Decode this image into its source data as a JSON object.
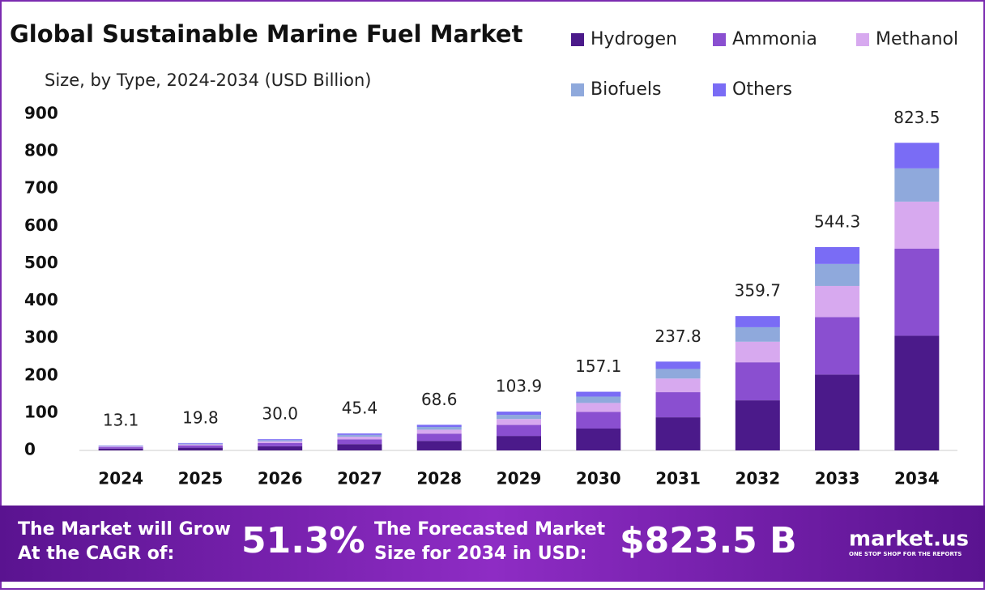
{
  "chart_data": {
    "type": "stacked_bar",
    "title": "Global Sustainable Marine Fuel Market",
    "subtitle": "Size, by Type, 2024-2034 (USD Billion)",
    "categories": [
      "2024",
      "2025",
      "2026",
      "2027",
      "2028",
      "2029",
      "2030",
      "2031",
      "2032",
      "2033",
      "2034"
    ],
    "series": [
      {
        "name": "Hydrogen",
        "color": "#4b1a8a",
        "values": [
          4.9,
          7.4,
          11.2,
          16.9,
          25.6,
          38.8,
          58.6,
          88.7,
          134.2,
          203.0,
          307
        ]
      },
      {
        "name": "Ammonia",
        "color": "#8a4fd0",
        "values": [
          3.7,
          5.6,
          8.5,
          12.8,
          19.4,
          29.4,
          44.5,
          67.3,
          101.8,
          154.0,
          233
        ]
      },
      {
        "name": "Methanol",
        "color": "#d7a9ef",
        "values": [
          2.0,
          3.0,
          4.6,
          6.9,
          10.5,
          15.9,
          24.0,
          36.4,
          55.0,
          83.3,
          126
        ]
      },
      {
        "name": "Biofuels",
        "color": "#8fa9dc",
        "values": [
          1.4,
          2.1,
          3.2,
          4.9,
          7.4,
          11.2,
          17.0,
          25.7,
          38.8,
          58.8,
          89
        ]
      },
      {
        "name": "Others",
        "color": "#7a6cf5",
        "values": [
          1.1,
          1.7,
          2.5,
          3.9,
          5.7,
          8.6,
          13.0,
          19.7,
          29.9,
          45.2,
          68.5
        ]
      }
    ],
    "totals": {
      "values": [
        13.1,
        19.8,
        30.0,
        45.4,
        68.6,
        103.9,
        157.1,
        237.8,
        359.7,
        544.3,
        823.5
      ],
      "value_labels": [
        "13.1",
        "19.8",
        "30.0",
        "45.4",
        "68.6",
        "103.9",
        "157.1",
        "237.8",
        "359.7",
        "544.3",
        "823.5"
      ]
    },
    "ylim": [
      0,
      900
    ],
    "yticks": [
      0,
      100,
      200,
      300,
      400,
      500,
      600,
      700,
      800,
      900
    ],
    "grid": false
  },
  "footer": {
    "cagr_label": [
      "The Market will Grow",
      "At the CAGR of:"
    ],
    "cagr_value": "51.3%",
    "forecast_label": [
      "The Forecasted Market",
      "Size for 2034 in USD:"
    ],
    "forecast_value": "$823.5 B",
    "logo": "market.us",
    "tagline": "ONE STOP SHOP FOR THE REPORTS"
  }
}
